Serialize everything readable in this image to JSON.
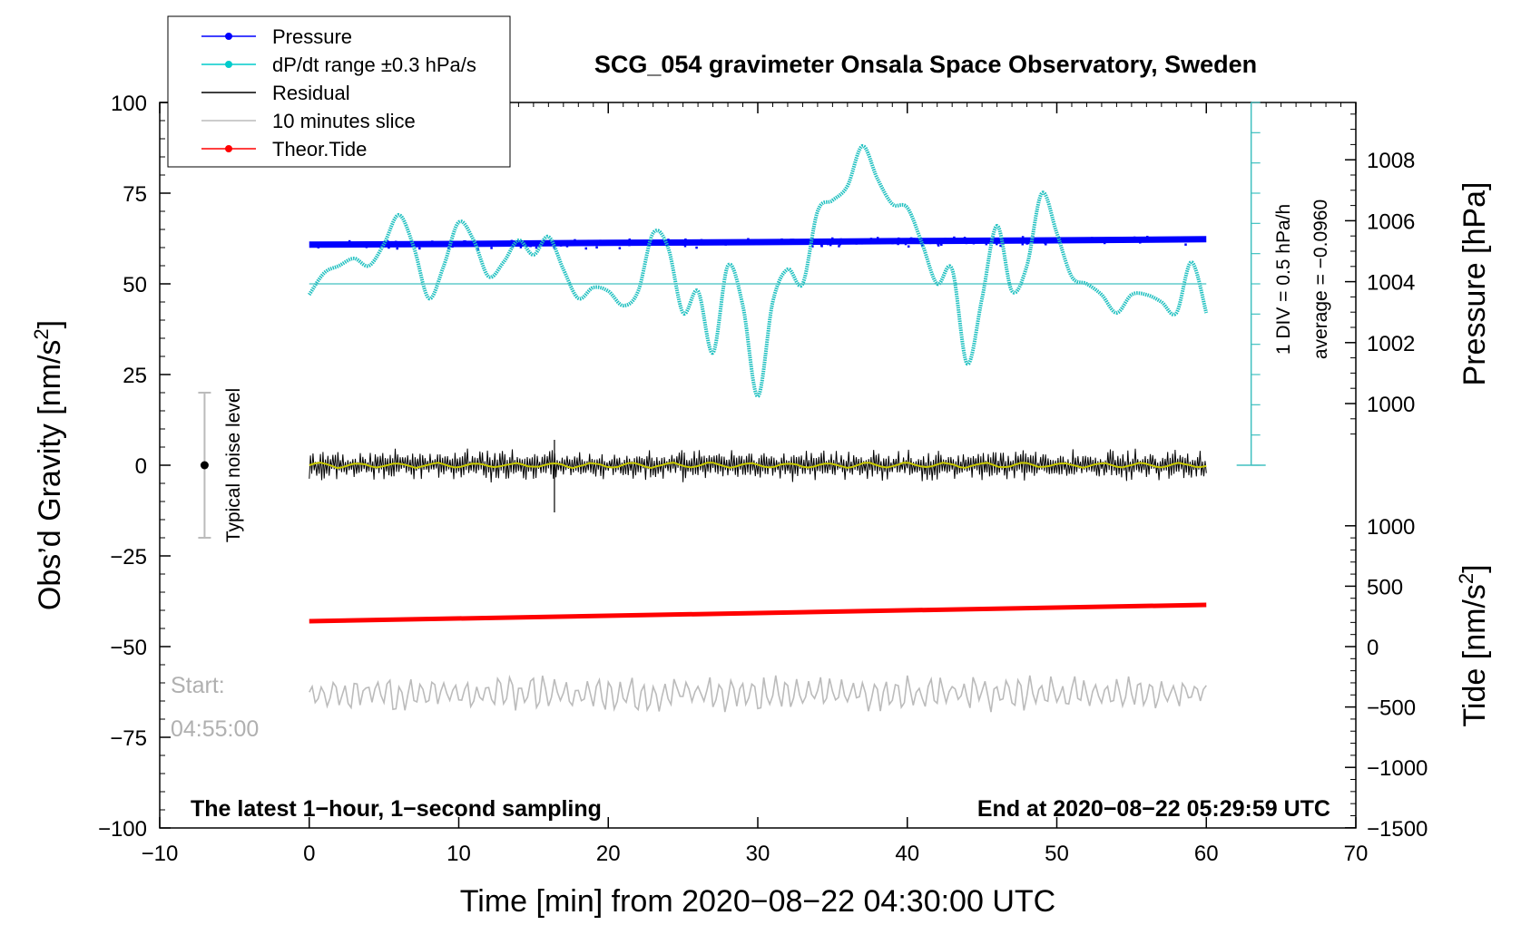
{
  "chart_data": {
    "type": "line",
    "title": "SCG_054 gravimeter Onsala Space Observatory, Sweden",
    "xlabel": "Time [min] from 2020−08−22 04:30:00 UTC",
    "ylabel_left": "Obs’d Gravity [nm/s²]",
    "ylabel_left_main": "Obs’d Gravity [nm/s",
    "ylabel_left_sup": "2",
    "ylabel_left_end": "]",
    "ylabel_right_top": "Pressure [hPa]",
    "ylabel_right_bottom": "Tide [nm/s²]",
    "ylabel_right_bottom_main": "Tide [nm/s",
    "ylabel_right_bottom_sup": "2",
    "ylabel_right_bottom_end": "]",
    "xlim": [
      -10,
      70
    ],
    "ylim": [
      -100,
      100
    ],
    "x_ticks": [
      -10,
      0,
      10,
      20,
      30,
      40,
      50,
      60,
      70
    ],
    "x_tick_labels": [
      "−10",
      "0",
      "10",
      "20",
      "30",
      "40",
      "50",
      "60",
      "70"
    ],
    "y_ticks": [
      -100,
      -75,
      -50,
      -25,
      0,
      25,
      50,
      75,
      100
    ],
    "y_tick_labels": [
      "−100",
      "−75",
      "−50",
      "−25",
      "0",
      "25",
      "50",
      "75",
      "100"
    ],
    "pressure_axis": {
      "ticks": [
        1000,
        1002,
        1004,
        1006,
        1008
      ],
      "tick_labels": [
        "1000",
        "1002",
        "1004",
        "1006",
        "1008"
      ],
      "gravity_at_1000": 17,
      "gravity_per_hPa": 8.4
    },
    "tide_axis": {
      "ticks": [
        -1500,
        -1000,
        -500,
        0,
        500,
        1000
      ],
      "tick_labels": [
        "−1500",
        "−1000",
        "−500",
        "0",
        "500",
        "1000"
      ],
      "gravity_at_0": -50,
      "gravity_per_unit": 0.0333
    },
    "legend": {
      "placement": "top-left",
      "entries": [
        {
          "label": "Pressure",
          "color": "#0000ff",
          "marker": true
        },
        {
          "label": "dP/dt range ±0.3 hPa/s",
          "color": "#00cccc",
          "marker": true
        },
        {
          "label": "Residual",
          "color": "#000000",
          "marker": false
        },
        {
          "label": "10 minutes slice",
          "color": "#bbbbbb",
          "marker": false
        },
        {
          "label": "Theor.Tide",
          "color": "#ff0000",
          "marker": true
        }
      ]
    },
    "series": [
      {
        "name": "Pressure",
        "color": "#0000ff",
        "x": [
          0,
          10,
          20,
          30,
          40,
          50,
          60
        ],
        "values": [
          60.8,
          61.0,
          61.3,
          61.5,
          61.8,
          62.0,
          62.3
        ]
      },
      {
        "name": "dP/dt",
        "color": "#20c0c0",
        "x": [
          0,
          1,
          2,
          3,
          4,
          5,
          6,
          7,
          8,
          9,
          10,
          11,
          12,
          13,
          14,
          15,
          16,
          17,
          18,
          19,
          20,
          21,
          22,
          23,
          24,
          25,
          26,
          27,
          28,
          29,
          30,
          31,
          32,
          33,
          34,
          35,
          36,
          37,
          38,
          39,
          40,
          41,
          42,
          43,
          44,
          45,
          46,
          47,
          48,
          49,
          50,
          51,
          52,
          53,
          54,
          55,
          56,
          57,
          58,
          59,
          60
        ],
        "values": [
          47,
          53,
          55,
          57,
          55,
          61,
          69,
          60,
          46,
          55,
          67,
          62,
          52,
          56,
          62,
          58,
          63,
          54,
          46,
          49,
          48,
          44,
          48,
          64,
          60,
          42,
          48,
          31,
          55,
          44,
          19,
          45,
          54,
          50,
          70,
          73,
          77,
          88,
          79,
          72,
          71,
          61,
          50,
          54,
          28,
          46,
          66,
          48,
          55,
          75,
          64,
          52,
          50,
          47,
          42,
          47,
          47,
          45,
          42,
          56,
          42
        ]
      },
      {
        "name": "Residual",
        "color": "#000000",
        "x_start": 0,
        "x_end": 60,
        "center": 0,
        "amplitude": 3.5
      },
      {
        "name": "Residual smoothed",
        "color": "#c8c800",
        "x_start": 0,
        "x_end": 60,
        "center": 0,
        "amplitude": 0.8
      },
      {
        "name": "Theor.Tide",
        "color": "#ff0000",
        "x": [
          0,
          60
        ],
        "values": [
          -43,
          -38.5
        ]
      },
      {
        "name": "10 minutes slice",
        "color": "#bbbbbb",
        "x_start": 0,
        "x_end": 60,
        "center": -63,
        "amplitude": 4
      }
    ],
    "pressure_average_line": 50,
    "right_scale_bar": {
      "x": 63,
      "y_min": 0,
      "y_max": 100,
      "label_div": "1 DIV = 0.5 hPa/h",
      "label_avg": "average = −0.0960"
    },
    "noise_level": {
      "x": -7,
      "center": 0,
      "half_range": 20,
      "label": "Typical noise level"
    },
    "annotations": {
      "start_label": "Start:",
      "start_time": "04:55:00",
      "bottom_left": "The latest 1−hour, 1−second sampling",
      "bottom_right": "End at 2020−08−22 05:29:59 UTC"
    }
  }
}
